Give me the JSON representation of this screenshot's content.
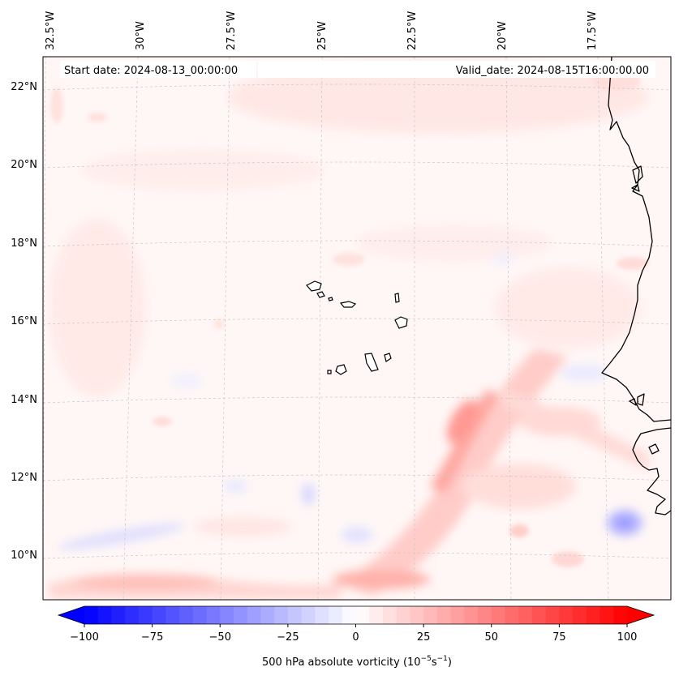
{
  "header": {
    "start_date": "Start date: 2024-08-13_00:00:00",
    "valid_date": "Valid_date: 2024-08-15T16:00:00.00"
  },
  "map": {
    "variable": "500 hPa absolute vorticity",
    "longitude_labels": [
      "32.5°W",
      "30°W",
      "27.5°W",
      "25°W",
      "22.5°W",
      "20°W",
      "17.5°W"
    ],
    "latitude_labels": [
      "22°N",
      "20°N",
      "18°N",
      "16°N",
      "14°N",
      "12°N",
      "10°N"
    ],
    "features": [
      "Cape Verde islands",
      "West African coastline"
    ]
  },
  "colorbar": {
    "label_prefix": "500 hPa absolute vorticity (10",
    "label_exp1": "−5",
    "label_mid": "s",
    "label_exp2": "−1",
    "label_suffix": ")",
    "ticks": [
      "−100",
      "−75",
      "−50",
      "−25",
      "0",
      "25",
      "50",
      "75",
      "100"
    ],
    "min": -100,
    "max": 100,
    "levels": 40,
    "cmap": "bwr",
    "low_color": "#0000ff",
    "mid_color": "#ffffff",
    "high_color": "#ff0000"
  }
}
